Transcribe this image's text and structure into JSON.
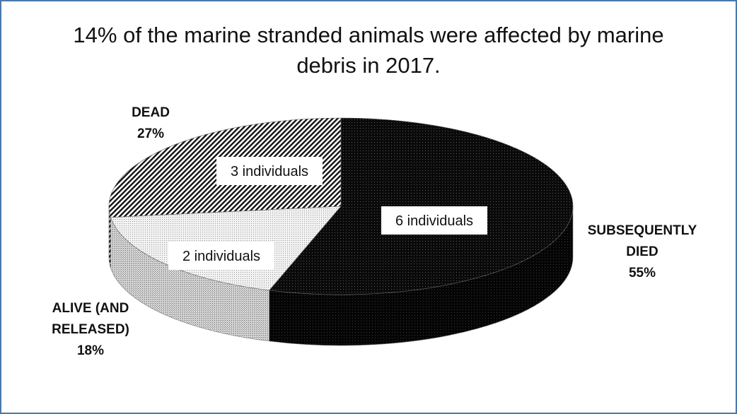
{
  "chart_data": {
    "type": "pie",
    "title_line1": "14% of the marine stranded animals were affected by marine",
    "title_line2": "debris in 2017.",
    "slices": [
      {
        "category": "SUBSEQUENTLY DIED",
        "category_lines": [
          "SUBSEQUENTLY",
          "DIED"
        ],
        "percent_label": "55%",
        "value": 55,
        "count_label": "6 individuals",
        "count": 6,
        "color": "#0d0d0d",
        "pattern": "fine-dots-dark"
      },
      {
        "category": "ALIVE (AND RELEASED)",
        "category_lines": [
          "ALIVE (AND",
          "RELEASED)"
        ],
        "percent_label": "18%",
        "value": 18,
        "count_label": "2 individuals",
        "count": 2,
        "color": "#eeeeee",
        "pattern": "fine-dots-light"
      },
      {
        "category": "DEAD",
        "category_lines": [
          "DEAD"
        ],
        "percent_label": "27%",
        "value": 27,
        "count_label": "3 individuals",
        "count": 3,
        "color": "#ffffff",
        "pattern": "diagonal-stripes"
      }
    ],
    "style": "3d-exploded-none",
    "legend": "none"
  }
}
